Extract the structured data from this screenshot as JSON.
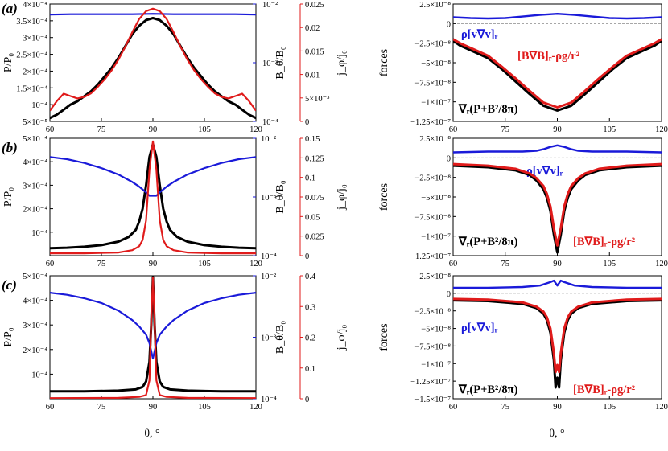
{
  "colors": {
    "black": "#000000",
    "blue": "#1a1ad9",
    "red": "#e01b1b",
    "gray": "#8a8a8a"
  },
  "chart_data": [
    {
      "panel": "(a)",
      "type": "line",
      "xlim": [
        60,
        120
      ],
      "xticks": [
        "60",
        "75",
        "90",
        "105",
        "120"
      ],
      "ylabel_left": "P/P₀",
      "ylabel_mid": "B_θ/B₀",
      "ylabel_right": "j_φ/j₀",
      "left_axis": {
        "scale": "linear",
        "ylim": [
          5e-05,
          0.0004
        ],
        "ticks": [
          "5×10⁻⁵",
          "10⁻⁴",
          "1.5×10⁻⁴",
          "2×10⁻⁴",
          "2.5×10⁻⁴",
          "3×10⁻⁴",
          "3.5×10⁻⁴",
          "4×10⁻⁴"
        ]
      },
      "mid_axis": {
        "scale": "log",
        "ylim": [
          0.0001,
          0.01
        ],
        "ticks": [
          "10⁻⁴",
          "10⁻³",
          "10⁻²"
        ]
      },
      "right_axis": {
        "scale": "linear",
        "ylim": [
          0,
          0.025
        ],
        "ticks": [
          "0",
          "5×10⁻³",
          "0.01",
          "0.015",
          "0.02",
          "0.025"
        ]
      },
      "series": [
        {
          "name": "P/P₀",
          "color": "#000000",
          "axis": "left",
          "x": [
            60,
            62,
            64,
            66,
            68,
            70,
            72,
            74,
            76,
            78,
            80,
            82,
            84,
            86,
            88,
            90,
            92,
            94,
            96,
            98,
            100,
            102,
            104,
            106,
            108,
            110,
            112,
            114,
            116,
            118,
            120
          ],
          "y": [
            6e-05,
            7e-05,
            8.5e-05,
            0.0001,
            0.00011,
            0.000125,
            0.00014,
            0.00016,
            0.000185,
            0.00021,
            0.00024,
            0.000275,
            0.00031,
            0.000335,
            0.000352,
            0.000358,
            0.000352,
            0.000335,
            0.00031,
            0.000275,
            0.00024,
            0.00021,
            0.000185,
            0.00016,
            0.00014,
            0.000125,
            0.00011,
            0.0001,
            8.5e-05,
            7e-05,
            6e-05
          ]
        },
        {
          "name": "B_θ/B₀",
          "color": "#1a1ad9",
          "axis": "mid",
          "x": [
            60,
            66,
            72,
            78,
            84,
            90,
            96,
            102,
            108,
            114,
            120
          ],
          "y": [
            0.0066,
            0.0067,
            0.0067,
            0.0067,
            0.0067,
            0.0068,
            0.0067,
            0.0067,
            0.0067,
            0.0067,
            0.0066
          ]
        },
        {
          "name": "j_φ/j₀",
          "color": "#e01b1b",
          "axis": "right",
          "x": [
            60,
            62,
            64,
            66,
            68,
            70,
            72,
            74,
            76,
            78,
            80,
            82,
            84,
            86,
            88,
            90,
            92,
            94,
            96,
            98,
            100,
            102,
            104,
            106,
            108,
            110,
            112,
            114,
            116,
            118,
            120
          ],
          "y": [
            0.0023,
            0.0043,
            0.0059,
            0.0054,
            0.0049,
            0.0052,
            0.006,
            0.0074,
            0.009,
            0.0109,
            0.0132,
            0.016,
            0.019,
            0.0218,
            0.0235,
            0.024,
            0.0235,
            0.0218,
            0.019,
            0.016,
            0.0132,
            0.0109,
            0.009,
            0.0074,
            0.006,
            0.0052,
            0.0049,
            0.0054,
            0.0059,
            0.0043,
            0.0023
          ]
        }
      ]
    },
    {
      "panel": "(a)",
      "type": "line",
      "xlim": [
        60,
        120
      ],
      "xticks": [
        "60",
        "75",
        "90",
        "105",
        "120"
      ],
      "ylabel": "forces",
      "ylim": [
        -1.25e-07,
        2.5e-08
      ],
      "yticks": [
        "2.5×10⁻⁸",
        "0",
        "−2.5×10⁻⁸",
        "−5×10⁻⁸",
        "−7.5×10⁻⁸",
        "−1×10⁻⁷",
        "−1.25×10⁻⁷"
      ],
      "annotations": [
        "ρ[v∇v]ᵣ",
        "[B∇B]ᵣ-ρg/r²",
        "∇ᵣ(P+B²/8π)"
      ],
      "series": [
        {
          "name": "ρ[v∇v]ᵣ",
          "color": "#1a1ad9",
          "x": [
            60,
            65,
            70,
            75,
            80,
            85,
            90,
            95,
            100,
            105,
            110,
            115,
            120
          ],
          "y": [
            8e-09,
            7e-09,
            6.5e-09,
            7e-09,
            9e-09,
            1.1e-08,
            1.25e-08,
            1.1e-08,
            9e-09,
            7e-09,
            6.5e-09,
            7e-09,
            8e-09
          ]
        },
        {
          "name": "[B∇B]ᵣ-ρg/r²",
          "color": "#e01b1b",
          "x": [
            60,
            62,
            66,
            70,
            74,
            78,
            82,
            86,
            90,
            94,
            98,
            102,
            106,
            110,
            114,
            118,
            120
          ],
          "y": [
            -2e-08,
            -2.5e-08,
            -3.3e-08,
            -4.1e-08,
            -5.5e-08,
            -7e-08,
            -8.6e-08,
            -1.01e-07,
            -1.07e-07,
            -1.01e-07,
            -8.6e-08,
            -7e-08,
            -5.5e-08,
            -4.1e-08,
            -3.3e-08,
            -2.5e-08,
            -2e-08
          ]
        },
        {
          "name": "∇ᵣ(P+B²/8π)",
          "color": "#000000",
          "x": [
            60,
            62,
            66,
            70,
            74,
            78,
            82,
            86,
            90,
            94,
            98,
            102,
            106,
            110,
            114,
            118,
            120
          ],
          "y": [
            -2.2e-08,
            -2.8e-08,
            -3.6e-08,
            -4.4e-08,
            -5.8e-08,
            -7.4e-08,
            -9e-08,
            -1.05e-07,
            -1.11e-07,
            -1.05e-07,
            -9e-08,
            -7.4e-08,
            -5.8e-08,
            -4.4e-08,
            -3.6e-08,
            -2.8e-08,
            -2.2e-08
          ]
        }
      ]
    },
    {
      "panel": "(b)",
      "type": "line",
      "xlim": [
        60,
        120
      ],
      "xticks": [
        "60",
        "75",
        "90",
        "105",
        "120"
      ],
      "ylabel_left": "P/P₀",
      "ylabel_mid": "B_θ/B₀",
      "ylabel_right": "j_φ/j₀",
      "left_axis": {
        "scale": "linear",
        "ylim": [
          0,
          0.0005
        ],
        "ticks": [
          "10⁻⁴",
          "2×10⁻⁴",
          "3×10⁻⁴",
          "4×10⁻⁴",
          "5×10⁻⁴"
        ]
      },
      "mid_axis": {
        "scale": "log",
        "ylim": [
          0.0001,
          0.01
        ],
        "ticks": [
          "10⁻⁴",
          "10⁻³",
          "10⁻²"
        ]
      },
      "right_axis": {
        "scale": "linear",
        "ylim": [
          0,
          0.15
        ],
        "ticks": [
          "0",
          "0.025",
          "0.05",
          "0.075",
          "0.1",
          "0.125",
          "0.15"
        ]
      },
      "series": [
        {
          "name": "P/P₀",
          "color": "#000000",
          "axis": "left",
          "x": [
            60,
            65,
            70,
            75,
            80,
            83,
            85,
            86,
            87,
            88,
            89,
            90,
            91,
            92,
            93,
            94,
            95,
            97,
            100,
            105,
            110,
            115,
            120
          ],
          "y": [
            3.2e-05,
            3.4e-05,
            3.8e-05,
            4.5e-05,
            6e-05,
            8e-05,
            0.00011,
            0.000145,
            0.0002,
            0.0003,
            0.00042,
            0.000475,
            0.00042,
            0.0003,
            0.0002,
            0.000145,
            0.00011,
            8e-05,
            6e-05,
            4.5e-05,
            3.8e-05,
            3.4e-05,
            3.2e-05
          ]
        },
        {
          "name": "B_θ/B₀",
          "color": "#1a1ad9",
          "axis": "mid",
          "x": [
            60,
            65,
            70,
            75,
            80,
            84,
            86,
            88,
            89,
            90,
            91,
            92,
            94,
            96,
            100,
            105,
            110,
            115,
            120
          ],
          "y": [
            0.0048,
            0.0044,
            0.0038,
            0.0031,
            0.0024,
            0.0018,
            0.0015,
            0.0012,
            0.00105,
            0.00105,
            0.00105,
            0.0012,
            0.0015,
            0.0018,
            0.0024,
            0.0031,
            0.0038,
            0.0044,
            0.0048
          ]
        },
        {
          "name": "j_φ/j₀",
          "color": "#e01b1b",
          "axis": "right",
          "x": [
            60,
            70,
            80,
            84,
            86,
            87,
            88,
            89,
            90,
            91,
            92,
            93,
            94,
            96,
            100,
            110,
            120
          ],
          "y": [
            0.003,
            0.003,
            0.004,
            0.007,
            0.012,
            0.02,
            0.045,
            0.11,
            0.146,
            0.11,
            0.045,
            0.02,
            0.012,
            0.007,
            0.004,
            0.003,
            0.003
          ]
        }
      ]
    },
    {
      "panel": "(b)",
      "type": "line",
      "xlim": [
        60,
        120
      ],
      "xticks": [
        "60",
        "75",
        "90",
        "105",
        "120"
      ],
      "ylabel": "forces",
      "ylim": [
        -1.25e-07,
        2.5e-08
      ],
      "yticks": [
        "2.5×10⁻⁸",
        "0",
        "−2.5×10⁻⁸",
        "−5×10⁻⁸",
        "−7.5×10⁻⁸",
        "−1×10⁻⁷",
        "−1.25×10⁻⁷"
      ],
      "annotations": [
        "ρ[v∇v]ᵣ",
        "∇ᵣ(P+B²/8π)",
        "[B∇B]ᵣ-ρg/r²"
      ],
      "series": [
        {
          "name": "ρ[v∇v]ᵣ",
          "color": "#1a1ad9",
          "x": [
            60,
            70,
            80,
            84,
            86,
            88,
            90,
            92,
            94,
            96,
            100,
            110,
            120
          ],
          "y": [
            7e-09,
            8e-09,
            8e-09,
            9e-09,
            1.1e-08,
            1.4e-08,
            1.6e-08,
            1.4e-08,
            1.1e-08,
            9e-09,
            8e-09,
            8e-09,
            7e-09
          ]
        },
        {
          "name": "[B∇B]ᵣ-ρg/r²",
          "color": "#e01b1b",
          "x": [
            60,
            70,
            78,
            82,
            84,
            86,
            87,
            88,
            89,
            90,
            91,
            92,
            93,
            94,
            96,
            98,
            102,
            110,
            120
          ],
          "y": [
            -8e-09,
            -1e-08,
            -1.4e-08,
            -2e-08,
            -2.6e-08,
            -3.6e-08,
            -4.6e-08,
            -6.2e-08,
            -9e-08,
            -1.12e-07,
            -9e-08,
            -6.2e-08,
            -4.6e-08,
            -3.6e-08,
            -2.6e-08,
            -2e-08,
            -1.4e-08,
            -1e-08,
            -8e-09
          ]
        },
        {
          "name": "∇ᵣ(P+B²/8π)",
          "color": "#000000",
          "x": [
            60,
            70,
            78,
            82,
            84,
            86,
            87,
            88,
            89,
            90,
            91,
            92,
            93,
            94,
            96,
            98,
            102,
            110,
            120
          ],
          "y": [
            -1e-08,
            -1.2e-08,
            -1.6e-08,
            -2.2e-08,
            -2.9e-08,
            -4e-08,
            -5.1e-08,
            -6.8e-08,
            -9.8e-08,
            -1.21e-07,
            -9.8e-08,
            -6.8e-08,
            -5.1e-08,
            -4e-08,
            -2.9e-08,
            -2.2e-08,
            -1.6e-08,
            -1.2e-08,
            -1e-08
          ]
        }
      ]
    },
    {
      "panel": "(c)",
      "type": "line",
      "xlim": [
        60,
        120
      ],
      "xticks": [
        "60",
        "75",
        "90",
        "105",
        "120"
      ],
      "xlabel": "θ, °",
      "ylabel_left": "P/P₀",
      "ylabel_mid": "B_θ/B₀",
      "ylabel_right": "j_φ/j₀",
      "left_axis": {
        "scale": "linear",
        "ylim": [
          0,
          0.0005
        ],
        "ticks": [
          "10⁻⁴",
          "2×10⁻⁴",
          "3×10⁻⁴",
          "4×10⁻⁴",
          "5×10⁻⁴"
        ]
      },
      "mid_axis": {
        "scale": "log",
        "ylim": [
          0.0001,
          0.01
        ],
        "ticks": [
          "10⁻⁴",
          "10⁻³",
          "10⁻²"
        ]
      },
      "right_axis": {
        "scale": "linear",
        "ylim": [
          0,
          0.4
        ],
        "ticks": [
          "0",
          "0.1",
          "0.2",
          "0.3",
          "0.4"
        ]
      },
      "series": [
        {
          "name": "P/P₀",
          "color": "#000000",
          "axis": "left",
          "x": [
            60,
            70,
            80,
            85,
            87,
            88,
            89,
            89.5,
            90,
            90.5,
            91,
            92,
            93,
            95,
            100,
            110,
            120
          ],
          "y": [
            3e-05,
            3e-05,
            3.3e-05,
            3.8e-05,
            4.8e-05,
            7e-05,
            0.00015,
            0.0003,
            0.000495,
            0.0003,
            0.00015,
            7e-05,
            4.8e-05,
            3.8e-05,
            3.3e-05,
            3e-05,
            3e-05
          ]
        },
        {
          "name": "B_θ/B₀",
          "color": "#1a1ad9",
          "axis": "mid",
          "x": [
            60,
            65,
            70,
            75,
            80,
            84,
            86,
            88,
            89,
            90,
            91,
            92,
            94,
            96,
            100,
            105,
            110,
            115,
            120
          ],
          "y": [
            0.0053,
            0.0049,
            0.0043,
            0.0036,
            0.0027,
            0.0019,
            0.0015,
            0.0011,
            0.0008,
            0.00045,
            0.0008,
            0.0011,
            0.0015,
            0.0019,
            0.0027,
            0.0036,
            0.0043,
            0.0049,
            0.0053
          ]
        },
        {
          "name": "j_φ/j₀",
          "color": "#e01b1b",
          "axis": "right",
          "x": [
            60,
            80,
            86,
            88,
            89,
            89.5,
            90,
            90.5,
            91,
            92,
            94,
            100,
            120
          ],
          "y": [
            0.002,
            0.003,
            0.006,
            0.012,
            0.06,
            0.25,
            0.395,
            0.25,
            0.06,
            0.012,
            0.006,
            0.003,
            0.002
          ]
        }
      ]
    },
    {
      "panel": "(c)",
      "type": "line",
      "xlim": [
        60,
        120
      ],
      "xticks": [
        "60",
        "75",
        "90",
        "105",
        "120"
      ],
      "xlabel": "θ, °",
      "ylabel": "forces",
      "ylim": [
        -1.5e-07,
        2.5e-08
      ],
      "yticks": [
        "2.5×10⁻⁸",
        "0",
        "−2.5×10⁻⁸",
        "−5×10⁻⁸",
        "−7.5×10⁻⁸",
        "−1×10⁻⁷",
        "−1.25×10⁻⁷",
        "−1.5×10⁻⁷"
      ],
      "annotations": [
        "ρ[v∇v]ᵣ",
        "∇ᵣ(P+B²/8π)",
        "[B∇B]ᵣ-ρg/r²"
      ],
      "series": [
        {
          "name": "ρ[v∇v]ᵣ",
          "color": "#1a1ad9",
          "x": [
            60,
            70,
            80,
            85,
            88,
            89,
            90,
            91,
            92,
            95,
            100,
            110,
            120
          ],
          "y": [
            8e-09,
            8e-09,
            9e-09,
            1.1e-08,
            1.6e-08,
            1.8e-08,
            1.1e-08,
            1.8e-08,
            1.6e-08,
            1.1e-08,
            9e-09,
            8e-09,
            8e-09
          ]
        },
        {
          "name": "[B∇B]ᵣ-ρg/r²",
          "color": "#e01b1b",
          "x": [
            60,
            70,
            80,
            84,
            86,
            87,
            88,
            89,
            89.5,
            90,
            90.5,
            91,
            92,
            93,
            94,
            96,
            100,
            110,
            120
          ],
          "y": [
            -8e-09,
            -9e-09,
            -1.3e-08,
            -1.9e-08,
            -2.6e-08,
            -3.4e-08,
            -5e-08,
            -8.5e-08,
            -1.12e-07,
            -1.02e-07,
            -1.12e-07,
            -8.5e-08,
            -5e-08,
            -3.4e-08,
            -2.6e-08,
            -1.9e-08,
            -1.3e-08,
            -9e-09,
            -8e-09
          ]
        },
        {
          "name": "∇ᵣ(P+B²/8π)",
          "color": "#000000",
          "x": [
            60,
            70,
            80,
            84,
            86,
            87,
            88,
            89,
            89.5,
            90,
            90.5,
            91,
            92,
            93,
            94,
            96,
            100,
            110,
            120
          ],
          "y": [
            -1e-08,
            -1.1e-08,
            -1.5e-08,
            -2.1e-08,
            -2.9e-08,
            -3.8e-08,
            -5.6e-08,
            -9.5e-08,
            -1.34e-07,
            -1.2e-07,
            -1.34e-07,
            -9.5e-08,
            -5.6e-08,
            -3.8e-08,
            -2.9e-08,
            -2.1e-08,
            -1.5e-08,
            -1.1e-08,
            -1e-08
          ]
        }
      ]
    }
  ]
}
